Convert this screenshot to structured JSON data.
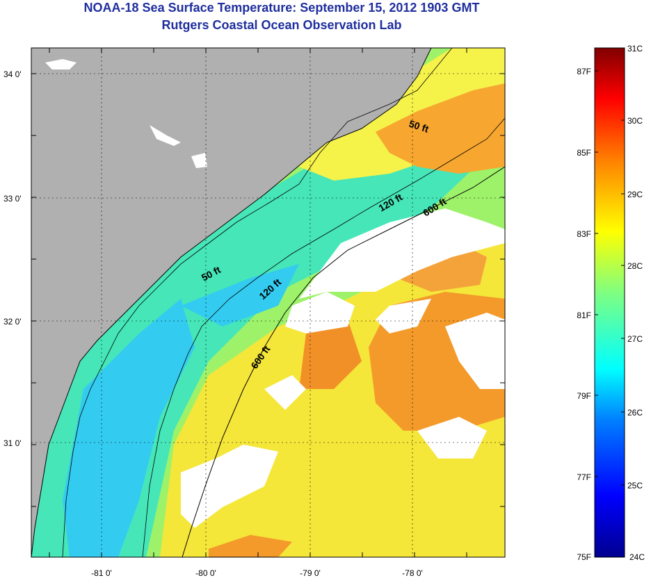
{
  "title": "NOAA-18 Sea Surface Temperature:  September 15, 2012 1903 GMT",
  "subtitle": "Rutgers Coastal Ocean Observation Lab",
  "colors": {
    "land": "#b0b0b0",
    "cloud": "#ffffff",
    "title": "#1f2f9e",
    "scale": [
      "#00008f",
      "#0000ff",
      "#0080ff",
      "#00ffff",
      "#80ff80",
      "#ffff00",
      "#ff8000",
      "#ff0000",
      "#800000"
    ]
  },
  "map": {
    "lon_labels": [
      "-81 0'",
      "-80 0'",
      "-79 0'",
      "-78 0'"
    ],
    "lat_labels": [
      "34 0'",
      "33 0'",
      "32 0'",
      "31 0'"
    ],
    "isobath_labels": [
      "50 ft",
      "50 ft",
      "120 ft",
      "120 ft",
      "600 ft",
      "600 ft"
    ]
  },
  "colorbar": {
    "celsius": [
      "31C",
      "30C",
      "29C",
      "28C",
      "27C",
      "26C",
      "25C",
      "24C"
    ],
    "fahrenheit": [
      "87F",
      "85F",
      "83F",
      "81F",
      "79F",
      "77F",
      "75F"
    ]
  }
}
